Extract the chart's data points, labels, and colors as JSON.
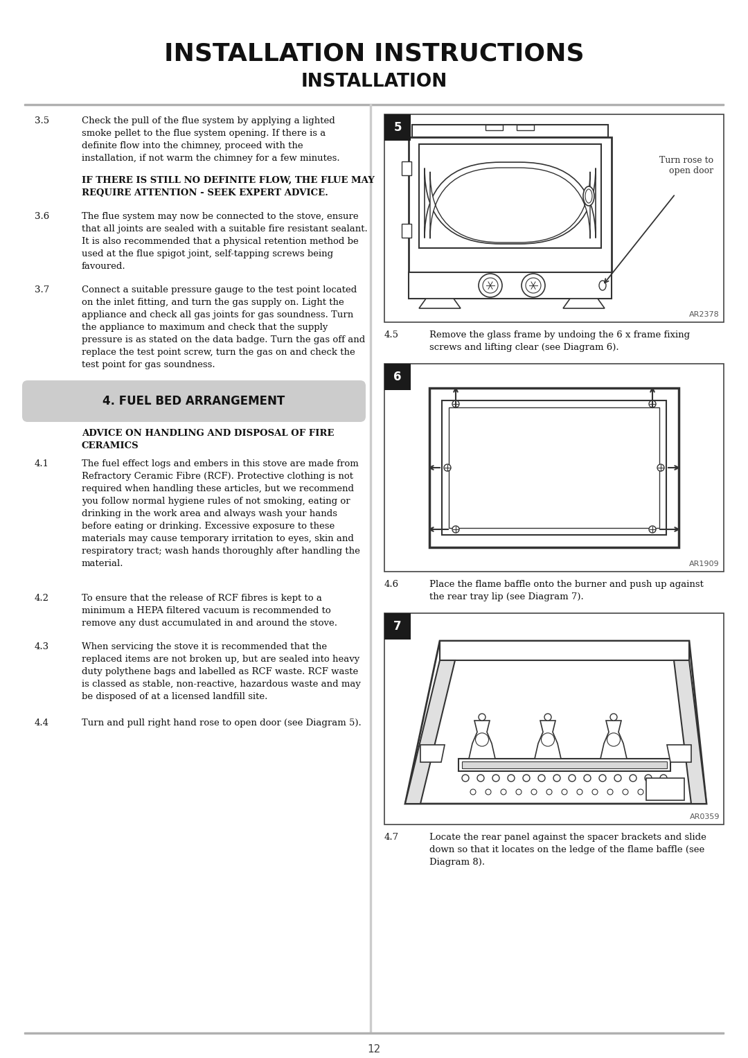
{
  "bg_color": "#ffffff",
  "text_color": "#111111",
  "section_bg": "#cccccc",
  "title1": "INSTALLATION INSTRUCTIONS",
  "title2": "INSTALLATION",
  "s35_num": "3.5",
  "s35_body": "Check the pull of the flue system by applying a lighted\nsmoke pellet to the flue system opening. If there is a\ndefinite flow into the chimney, proceed with the\ninstallation, if not warm the chimney for a few minutes.",
  "s35_bold": "IF THERE IS STILL NO DEFINITE FLOW, THE FLUE MAY\nREQUIRE ATTENTION - SEEK EXPERT ADVICE.",
  "s36_num": "3.6",
  "s36_body": "The flue system may now be connected to the stove, ensure\nthat all joints are sealed with a suitable fire resistant sealant.\nIt is also recommended that a physical retention method be\nused at the flue spigot joint, self-tapping screws being\nfavoured.",
  "s37_num": "3.7",
  "s37_body": "Connect a suitable pressure gauge to the test point located\non the inlet fitting, and turn the gas supply on. Light the\nappliance and check all gas joints for gas soundness. Turn\nthe appliance to maximum and check that the supply\npressure is as stated on the data badge. Turn the gas off and\nreplace the test point screw, turn the gas on and check the\ntest point for gas soundness.",
  "sec4_title": "4. FUEL BED ARRANGEMENT",
  "advice_hdr": "ADVICE ON HANDLING AND DISPOSAL OF FIRE\nCERAMICS",
  "s41_num": "4.1",
  "s41_body": "The fuel effect logs and embers in this stove are made from\nRefractory Ceramic Fibre (RCF). Protective clothing is not\nrequired when handling these articles, but we recommend\nyou follow normal hygiene rules of not smoking, eating or\ndrinking in the work area and always wash your hands\nbefore eating or drinking. Excessive exposure to these\nmaterials may cause temporary irritation to eyes, skin and\nrespiratory tract; wash hands thoroughly after handling the\nmaterial.",
  "s42_num": "4.2",
  "s42_body": "To ensure that the release of RCF fibres is kept to a\nminimum a HEPA filtered vacuum is recommended to\nremove any dust accumulated in and around the stove.",
  "s43_num": "4.3",
  "s43_body": "When servicing the stove it is recommended that the\nreplaced items are not broken up, but are sealed into heavy\nduty polythene bags and labelled as RCF waste. RCF waste\nis classed as stable, non-reactive, hazardous waste and may\nbe disposed of at a licensed landfill site.",
  "s44_num": "4.4",
  "s44_body": "Turn and pull right hand rose to open door (see Diagram 5).",
  "d5_label": "5",
  "d5_note": "Turn rose to\nopen door",
  "d5_code": "AR2378",
  "s45_num": "4.5",
  "s45_body": "Remove the glass frame by undoing the 6 x frame fixing\nscrews and lifting clear (see Diagram 6).",
  "d6_label": "6",
  "d6_code": "AR1909",
  "s46_num": "4.6",
  "s46_body": "Place the flame baffle onto the burner and push up against\nthe rear tray lip (see Diagram 7).",
  "d7_label": "7",
  "d7_code": "AR0359",
  "s47_num": "4.7",
  "s47_body": "Locate the rear panel against the spacer brackets and slide\ndown so that it locates on the ledge of the flame baffle (see\nDiagram 8).",
  "page": "12",
  "divider_color": "#aaaaaa",
  "lc": "#333333",
  "label_bg": "#1a1a1a"
}
